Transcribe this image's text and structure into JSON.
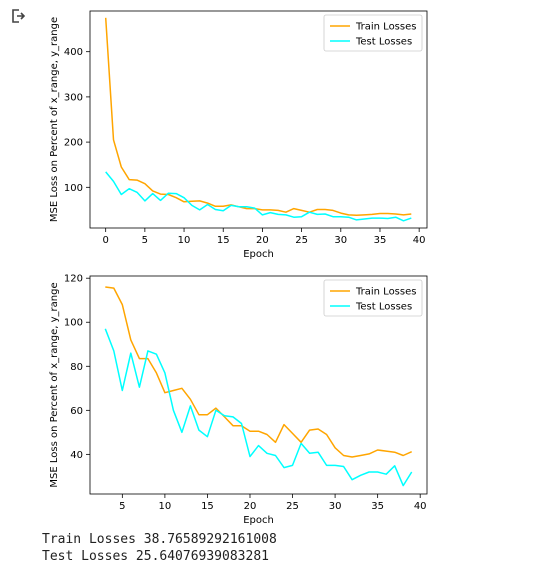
{
  "output_icon": "output-redirect-icon",
  "colors": {
    "train": "#ffa500",
    "test": "#00ffff"
  },
  "stdout": {
    "line1": "Train Losses 38.76589292161008",
    "line2": "Test Losses 25.64076939083281"
  },
  "chart_data": [
    {
      "type": "line",
      "xlabel": "Epoch",
      "ylabel": "MSE Loss on Percent of x_range, y_range",
      "xlim": [
        -2,
        41
      ],
      "ylim": [
        10,
        490
      ],
      "xticks": [
        0,
        5,
        10,
        15,
        20,
        25,
        30,
        35,
        40
      ],
      "yticks": [
        100,
        200,
        300,
        400
      ],
      "legend": "top-right",
      "x": [
        0,
        1,
        2,
        3,
        4,
        5,
        6,
        7,
        8,
        9,
        10,
        11,
        12,
        13,
        14,
        15,
        16,
        17,
        18,
        19,
        20,
        21,
        22,
        23,
        24,
        25,
        26,
        27,
        28,
        29,
        30,
        31,
        32,
        33,
        34,
        35,
        36,
        37,
        38,
        39
      ],
      "series": [
        {
          "name": "Train Losses",
          "color": "#ffa500",
          "values": [
            475,
            205,
            145,
            117,
            116,
            108,
            92,
            85,
            84,
            77,
            68,
            69,
            70,
            65,
            58,
            58,
            61,
            57,
            53,
            53,
            50,
            50,
            49,
            45,
            53,
            49,
            45,
            51,
            51,
            49,
            43,
            39,
            38,
            39,
            40,
            42,
            42,
            41,
            39,
            41
          ]
        },
        {
          "name": "Test Losses",
          "color": "#00ffff",
          "values": [
            134,
            113,
            84,
            97,
            89,
            70,
            86,
            71,
            87,
            86,
            77,
            60,
            50,
            62,
            51,
            48,
            60,
            57,
            57,
            54,
            39,
            44,
            40,
            39,
            34,
            35,
            45,
            40,
            41,
            35,
            35,
            34,
            28,
            30,
            32,
            32,
            31,
            34,
            26,
            32
          ]
        }
      ]
    },
    {
      "type": "line",
      "xlabel": "Epoch",
      "ylabel": "MSE Loss on Percent of x_range, y_range",
      "xlim": [
        1.2,
        40.8
      ],
      "ylim": [
        22,
        121
      ],
      "xticks": [
        5,
        10,
        15,
        20,
        25,
        30,
        35,
        40
      ],
      "yticks": [
        40,
        60,
        80,
        100,
        120
      ],
      "legend": "top-right",
      "x": [
        3,
        4,
        5,
        6,
        7,
        8,
        9,
        10,
        11,
        12,
        13,
        14,
        15,
        16,
        17,
        18,
        19,
        20,
        21,
        22,
        23,
        24,
        25,
        26,
        27,
        28,
        29,
        30,
        31,
        32,
        33,
        34,
        35,
        36,
        37,
        38,
        39
      ],
      "series": [
        {
          "name": "Train Losses",
          "color": "#ffa500",
          "values": [
            116,
            115.5,
            108,
            92,
            83.5,
            83.5,
            77,
            68,
            69,
            70,
            65,
            58,
            58,
            61,
            57,
            53,
            53,
            50.5,
            50.5,
            49,
            45.5,
            53.5,
            49.5,
            45.5,
            51,
            51.5,
            49,
            43,
            39.5,
            38.8,
            39.5,
            40.2,
            42,
            41.5,
            41,
            39.5,
            41.2
          ]
        },
        {
          "name": "Test Losses",
          "color": "#00ffff",
          "values": [
            97,
            87,
            69,
            86,
            70.5,
            87,
            85.5,
            77,
            60,
            50,
            62,
            51,
            48,
            60,
            57.5,
            57,
            54,
            39,
            44,
            40.5,
            39.5,
            34,
            35,
            45,
            40.5,
            41,
            35,
            35,
            34.5,
            28.5,
            30.5,
            32,
            32,
            31,
            34.8,
            25.8,
            32
          ]
        }
      ]
    }
  ]
}
